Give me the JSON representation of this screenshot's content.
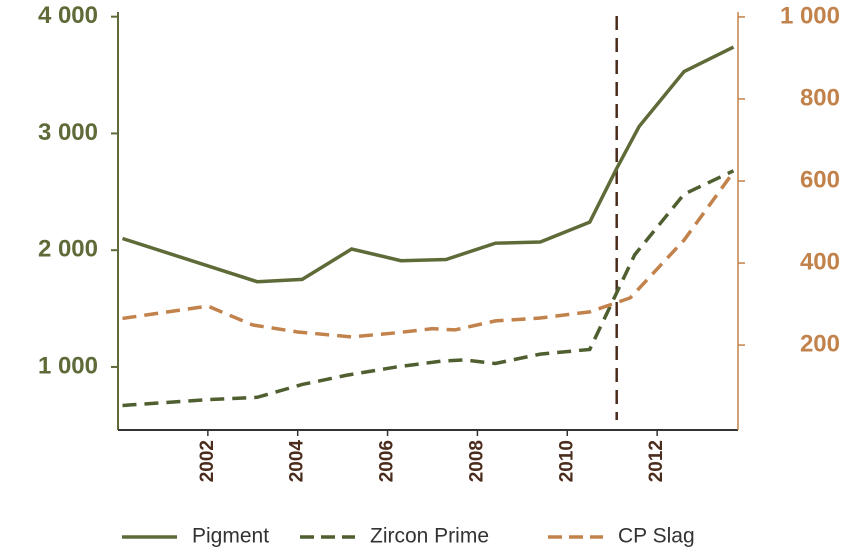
{
  "chart_data": {
    "type": "line",
    "xlim": [
      2000,
      2013.8
    ],
    "xticks": [
      2002,
      2004,
      2006,
      2008,
      2010,
      2012
    ],
    "ylim": [
      460,
      4040
    ],
    "yticks": [
      {
        "value": 1000,
        "label": "1 000"
      },
      {
        "value": 2000,
        "label": "2 000"
      },
      {
        "value": 3000,
        "label": "3 000"
      },
      {
        "value": 4000,
        "label": "4 000"
      }
    ],
    "y2lim": [
      -7,
      1012
    ],
    "y2ticks": [
      200,
      400,
      600,
      800,
      {
        "value": 1000,
        "label": "1 000"
      }
    ],
    "vline_x": 2011.1,
    "vline_color": "#4a2c1c",
    "legend": "bottom",
    "series": [
      {
        "name": "Pigment",
        "color": "#5e6b38",
        "dash": "solid",
        "axis": "y",
        "x": [
          2000.1,
          2003.1,
          2004.1,
          2005.2,
          2006.3,
          2007.3,
          2008.4,
          2009.4,
          2010.5,
          2011.1,
          2011.6,
          2012.6,
          2013.7
        ],
        "values": [
          2100,
          1730,
          1750,
          2010,
          1910,
          1920,
          2060,
          2070,
          2240,
          2700,
          3060,
          3530,
          3740
        ]
      },
      {
        "name": "Zircon Prime",
        "color": "#4f5f2f",
        "dash": "dashed",
        "axis": "y",
        "x": [
          2000.1,
          2002,
          2003.1,
          2004.1,
          2005.1,
          2006.2,
          2007.2,
          2007.7,
          2008.4,
          2009.4,
          2010.5,
          2011.5,
          2012.6,
          2013.7
        ],
        "values": [
          670,
          720,
          740,
          850,
          930,
          1000,
          1050,
          1060,
          1030,
          1110,
          1150,
          1960,
          2480,
          2680
        ]
      },
      {
        "name": "CP Slag",
        "color": "#c2824c",
        "dash": "dashed",
        "axis": "y2",
        "x": [
          2000.1,
          2002,
          2003,
          2004,
          2005.2,
          2006.2,
          2007,
          2007.5,
          2008.4,
          2009.4,
          2010.5,
          2011.4,
          2012.6,
          2013.7
        ],
        "values": [
          265,
          295,
          249,
          232,
          220,
          230,
          240,
          237,
          259,
          266,
          281,
          315,
          456,
          622
        ]
      }
    ]
  }
}
